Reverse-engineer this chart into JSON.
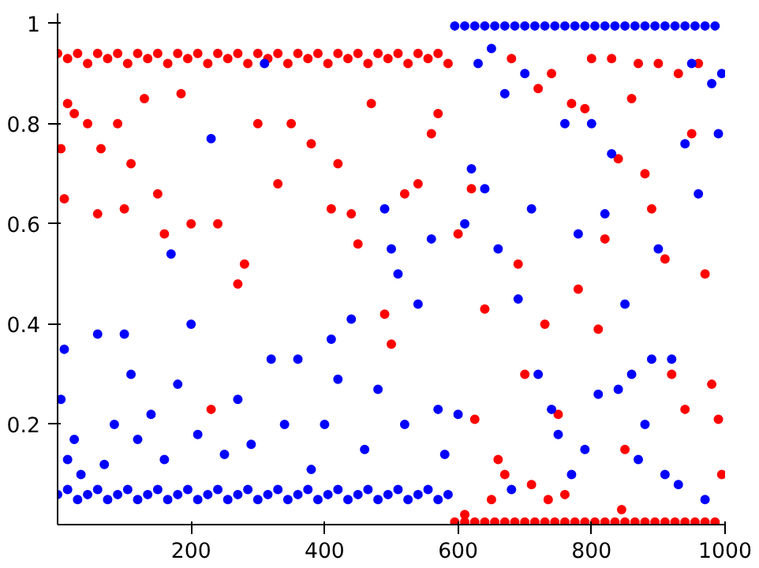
{
  "chart_data": {
    "type": "scatter",
    "marker": "circle",
    "grid": false,
    "xlim": [
      0,
      1000
    ],
    "ylim": [
      0,
      1.02
    ],
    "xticks": [
      200,
      400,
      600,
      800,
      1000
    ],
    "yticks": [
      0.2,
      0.4,
      0.6,
      0.8,
      1
    ],
    "series": [
      {
        "color": "#ff0000",
        "x": [
          0,
          15,
          30,
          45,
          60,
          75,
          90,
          105,
          120,
          135,
          150,
          165,
          180,
          195,
          210,
          225,
          240,
          255,
          270,
          285,
          300,
          315,
          330,
          345,
          360,
          375,
          390,
          405,
          420,
          435,
          450,
          465,
          480,
          495,
          510,
          525,
          540,
          555,
          570,
          585,
          5,
          10,
          15,
          25,
          45,
          60,
          65,
          90,
          100,
          110,
          130,
          150,
          160,
          185,
          200,
          240,
          270,
          280,
          300,
          330,
          350,
          380,
          410,
          420,
          450,
          470,
          490,
          500,
          520,
          540,
          560,
          570,
          230,
          440,
          595,
          610,
          625,
          640,
          655,
          670,
          685,
          700,
          715,
          730,
          745,
          760,
          775,
          790,
          805,
          820,
          835,
          850,
          865,
          880,
          895,
          910,
          925,
          940,
          955,
          970,
          985,
          600,
          610,
          620,
          640,
          650,
          660,
          670,
          680,
          690,
          700,
          710,
          720,
          730,
          740,
          750,
          760,
          770,
          780,
          790,
          800,
          810,
          820,
          830,
          840,
          850,
          860,
          870,
          880,
          890,
          900,
          910,
          920,
          930,
          940,
          950,
          960,
          970,
          980,
          990,
          995,
          625,
          735,
          845
        ],
        "values": [
          0.94,
          0.93,
          0.94,
          0.92,
          0.94,
          0.93,
          0.94,
          0.92,
          0.94,
          0.93,
          0.94,
          0.92,
          0.94,
          0.93,
          0.94,
          0.92,
          0.94,
          0.93,
          0.94,
          0.92,
          0.94,
          0.93,
          0.94,
          0.92,
          0.94,
          0.93,
          0.94,
          0.92,
          0.94,
          0.93,
          0.94,
          0.92,
          0.94,
          0.93,
          0.94,
          0.92,
          0.94,
          0.93,
          0.94,
          0.92,
          0.75,
          0.65,
          0.84,
          0.82,
          0.8,
          0.62,
          0.75,
          0.8,
          0.63,
          0.72,
          0.85,
          0.66,
          0.58,
          0.86,
          0.6,
          0.6,
          0.48,
          0.52,
          0.8,
          0.68,
          0.8,
          0.76,
          0.63,
          0.72,
          0.56,
          0.84,
          0.42,
          0.36,
          0.66,
          0.68,
          0.78,
          0.82,
          0.23,
          0.62,
          0.005,
          0.005,
          0.005,
          0.005,
          0.005,
          0.005,
          0.005,
          0.005,
          0.005,
          0.005,
          0.005,
          0.005,
          0.005,
          0.005,
          0.005,
          0.005,
          0.005,
          0.005,
          0.005,
          0.005,
          0.005,
          0.005,
          0.005,
          0.005,
          0.005,
          0.005,
          0.005,
          0.58,
          0.02,
          0.67,
          0.43,
          0.05,
          0.13,
          0.1,
          0.93,
          0.52,
          0.3,
          0.08,
          0.87,
          0.4,
          0.9,
          0.22,
          0.06,
          0.84,
          0.47,
          0.83,
          0.93,
          0.39,
          0.57,
          0.93,
          0.73,
          0.15,
          0.85,
          0.92,
          0.7,
          0.63,
          0.92,
          0.53,
          0.3,
          0.9,
          0.23,
          0.78,
          0.92,
          0.5,
          0.28,
          0.21,
          0.1,
          0.21,
          0.05,
          0.03
        ]
      },
      {
        "color": "#0000ff",
        "x": [
          0,
          15,
          30,
          45,
          60,
          75,
          90,
          105,
          120,
          135,
          150,
          165,
          180,
          195,
          210,
          225,
          240,
          255,
          270,
          285,
          300,
          315,
          330,
          345,
          360,
          375,
          390,
          405,
          420,
          435,
          450,
          465,
          480,
          495,
          510,
          525,
          540,
          555,
          570,
          585,
          5,
          10,
          15,
          25,
          35,
          60,
          70,
          85,
          100,
          110,
          120,
          140,
          160,
          170,
          180,
          200,
          210,
          230,
          250,
          270,
          290,
          310,
          320,
          340,
          360,
          380,
          400,
          410,
          420,
          440,
          460,
          480,
          490,
          500,
          510,
          520,
          540,
          560,
          570,
          580,
          595,
          610,
          625,
          640,
          655,
          670,
          685,
          700,
          715,
          730,
          745,
          760,
          775,
          790,
          805,
          820,
          835,
          850,
          865,
          880,
          895,
          910,
          925,
          940,
          955,
          970,
          985,
          600,
          610,
          620,
          630,
          640,
          650,
          660,
          670,
          680,
          690,
          700,
          710,
          720,
          740,
          750,
          760,
          770,
          780,
          790,
          800,
          810,
          820,
          830,
          840,
          850,
          860,
          870,
          880,
          890,
          900,
          910,
          920,
          930,
          940,
          950,
          960,
          970,
          980,
          990,
          995
        ],
        "values": [
          0.06,
          0.07,
          0.05,
          0.06,
          0.07,
          0.05,
          0.06,
          0.07,
          0.05,
          0.06,
          0.07,
          0.05,
          0.06,
          0.07,
          0.05,
          0.06,
          0.07,
          0.05,
          0.06,
          0.07,
          0.05,
          0.06,
          0.07,
          0.05,
          0.06,
          0.07,
          0.05,
          0.06,
          0.07,
          0.05,
          0.06,
          0.07,
          0.05,
          0.06,
          0.07,
          0.05,
          0.06,
          0.07,
          0.05,
          0.06,
          0.25,
          0.35,
          0.13,
          0.17,
          0.1,
          0.38,
          0.12,
          0.2,
          0.38,
          0.3,
          0.17,
          0.22,
          0.13,
          0.54,
          0.28,
          0.4,
          0.18,
          0.77,
          0.14,
          0.25,
          0.16,
          0.92,
          0.33,
          0.2,
          0.33,
          0.11,
          0.2,
          0.37,
          0.29,
          0.41,
          0.15,
          0.27,
          0.63,
          0.55,
          0.5,
          0.2,
          0.44,
          0.57,
          0.23,
          0.14,
          0.995,
          0.995,
          0.995,
          0.995,
          0.995,
          0.995,
          0.995,
          0.995,
          0.995,
          0.995,
          0.995,
          0.995,
          0.995,
          0.995,
          0.995,
          0.995,
          0.995,
          0.995,
          0.995,
          0.995,
          0.995,
          0.995,
          0.995,
          0.995,
          0.995,
          0.995,
          0.995,
          0.22,
          0.6,
          0.71,
          0.92,
          0.67,
          0.95,
          0.55,
          0.86,
          0.07,
          0.45,
          0.9,
          0.63,
          0.3,
          0.23,
          0.18,
          0.8,
          0.1,
          0.58,
          0.15,
          0.8,
          0.26,
          0.62,
          0.74,
          0.27,
          0.44,
          0.3,
          0.13,
          0.2,
          0.33,
          0.55,
          0.1,
          0.33,
          0.08,
          0.76,
          0.92,
          0.66,
          0.05,
          0.88,
          0.78,
          0.9
        ]
      }
    ]
  }
}
